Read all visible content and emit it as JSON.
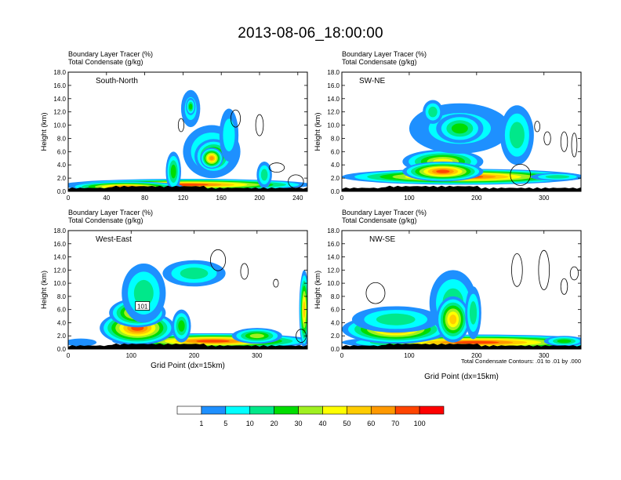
{
  "figure": {
    "title": "2013-08-06_18:00:00",
    "contour_note": "Total Condensate Contours: .01 to .01 by .000",
    "colorbar": {
      "colors": [
        "#ffffff",
        "#1e90ff",
        "#00ffff",
        "#00e88a",
        "#00dd00",
        "#a0f020",
        "#ffff00",
        "#ffcc00",
        "#ff9900",
        "#ff4400",
        "#ff0000"
      ],
      "labels": [
        "1",
        "5",
        "10",
        "20",
        "30",
        "40",
        "50",
        "60",
        "70",
        "100"
      ]
    }
  },
  "chart_data": [
    {
      "type": "heatmap",
      "name": "South-North",
      "title_line1": "Boundary Layer Tracer    (%)",
      "title_line2": "Total Condensate   (g/kg)",
      "xlabel": "",
      "ylabel": "Height (km)",
      "xlim": [
        0,
        250
      ],
      "ylim": [
        0,
        18
      ],
      "xticks": [
        0,
        40,
        80,
        120,
        160,
        200,
        240
      ],
      "yticks": [
        "0.0",
        "2.0",
        "4.0",
        "6.0",
        "8.0",
        "10.0",
        "12.0",
        "14.0",
        "16.0",
        "18.0"
      ],
      "blobs": [
        {
          "x": 125,
          "y": 1.0,
          "rx": 130,
          "ry": 0.9,
          "level": 9
        },
        {
          "x": 60,
          "y": 0.7,
          "rx": 60,
          "ry": 0.8,
          "level": 8
        },
        {
          "x": 150,
          "y": 6.0,
          "rx": 30,
          "ry": 4.0,
          "level": 3
        },
        {
          "x": 152,
          "y": 5.3,
          "rx": 20,
          "ry": 2.6,
          "level": 6
        },
        {
          "x": 150,
          "y": 5.0,
          "rx": 12,
          "ry": 1.6,
          "level": 8
        },
        {
          "x": 128,
          "y": 12.5,
          "rx": 10,
          "ry": 2.8,
          "level": 2
        },
        {
          "x": 128,
          "y": 12.8,
          "rx": 5,
          "ry": 1.3,
          "level": 4
        },
        {
          "x": 168,
          "y": 8.5,
          "rx": 10,
          "ry": 4.0,
          "level": 2
        },
        {
          "x": 205,
          "y": 2.5,
          "rx": 8,
          "ry": 2.0,
          "level": 3
        },
        {
          "x": 110,
          "y": 3.0,
          "rx": 8,
          "ry": 3.0,
          "level": 4
        }
      ],
      "contours": [
        {
          "x": 118,
          "y": 10.0,
          "rx": 3,
          "ry": 1.0
        },
        {
          "x": 175,
          "y": 11.0,
          "rx": 5,
          "ry": 1.3
        },
        {
          "x": 200,
          "y": 10.0,
          "rx": 4,
          "ry": 1.6
        },
        {
          "x": 238,
          "y": 1.5,
          "rx": 8,
          "ry": 1.0
        },
        {
          "x": 218,
          "y": 3.6,
          "rx": 8,
          "ry": 0.7
        }
      ]
    },
    {
      "type": "heatmap",
      "name": "SW-NE",
      "title_line1": "Boundary Layer Tracer    (%)",
      "title_line2": "Total Condensate   (g/kg)",
      "xlabel": "",
      "ylabel": "Height (km)",
      "xlim": [
        0,
        355
      ],
      "ylim": [
        0,
        18
      ],
      "xticks": [
        0,
        100,
        200,
        300
      ],
      "yticks": [
        "0.0",
        "2.0",
        "4.0",
        "6.0",
        "8.0",
        "10.0",
        "12.0",
        "14.0",
        "16.0",
        "18.0"
      ],
      "blobs": [
        {
          "x": 180,
          "y": 2.2,
          "rx": 180,
          "ry": 1.2,
          "level": 9
        },
        {
          "x": 150,
          "y": 4.5,
          "rx": 60,
          "ry": 1.8,
          "level": 6
        },
        {
          "x": 150,
          "y": 3.0,
          "rx": 60,
          "ry": 1.5,
          "level": 9
        },
        {
          "x": 175,
          "y": 9.5,
          "rx": 75,
          "ry": 3.8,
          "level": 2
        },
        {
          "x": 175,
          "y": 9.5,
          "rx": 35,
          "ry": 2.2,
          "level": 4
        },
        {
          "x": 260,
          "y": 8.5,
          "rx": 25,
          "ry": 4.5,
          "level": 3
        },
        {
          "x": 135,
          "y": 12.0,
          "rx": 15,
          "ry": 1.8,
          "level": 3
        },
        {
          "x": 320,
          "y": 2.2,
          "rx": 40,
          "ry": 0.6,
          "level": 3
        }
      ],
      "contours": [
        {
          "x": 290,
          "y": 9.8,
          "rx": 4,
          "ry": 0.8
        },
        {
          "x": 305,
          "y": 8.0,
          "rx": 5,
          "ry": 1.0
        },
        {
          "x": 330,
          "y": 7.5,
          "rx": 5,
          "ry": 1.5
        },
        {
          "x": 345,
          "y": 7.0,
          "rx": 4,
          "ry": 1.8
        },
        {
          "x": 265,
          "y": 2.5,
          "rx": 15,
          "ry": 1.6
        }
      ]
    },
    {
      "type": "heatmap",
      "name": "West-East",
      "title_line1": "Boundary Layer Tracer    (%)",
      "title_line2": "Total Condensate   (g/kg)",
      "xlabel": "Grid Point (dx=15km)",
      "ylabel": "Height (km)",
      "xlim": [
        0,
        380
      ],
      "ylim": [
        0,
        18
      ],
      "xticks": [
        0,
        100,
        200,
        300
      ],
      "yticks": [
        "0.0",
        "2.0",
        "4.0",
        "6.0",
        "8.0",
        "10.0",
        "12.0",
        "14.0",
        "16.0",
        "18.0"
      ],
      "box_label": "101",
      "blobs": [
        {
          "x": 230,
          "y": 1.2,
          "rx": 160,
          "ry": 1.2,
          "level": 9
        },
        {
          "x": 110,
          "y": 3.2,
          "rx": 60,
          "ry": 2.6,
          "level": 9
        },
        {
          "x": 110,
          "y": 5.5,
          "rx": 45,
          "ry": 2.2,
          "level": 7
        },
        {
          "x": 120,
          "y": 8.5,
          "rx": 35,
          "ry": 4.5,
          "level": 3
        },
        {
          "x": 200,
          "y": 11.5,
          "rx": 50,
          "ry": 2.0,
          "level": 3
        },
        {
          "x": 180,
          "y": 3.5,
          "rx": 15,
          "ry": 2.5,
          "level": 4
        },
        {
          "x": 300,
          "y": 2.0,
          "rx": 40,
          "ry": 1.2,
          "level": 5
        },
        {
          "x": 375,
          "y": 6.0,
          "rx": 8,
          "ry": 6.0,
          "level": 7
        },
        {
          "x": 20,
          "y": 1.0,
          "rx": 25,
          "ry": 0.6,
          "level": 1
        }
      ],
      "contours": [
        {
          "x": 238,
          "y": 13.5,
          "rx": 12,
          "ry": 1.6
        },
        {
          "x": 280,
          "y": 11.8,
          "rx": 6,
          "ry": 1.2
        },
        {
          "x": 330,
          "y": 10.0,
          "rx": 4,
          "ry": 0.6
        },
        {
          "x": 370,
          "y": 2.0,
          "rx": 8,
          "ry": 1.0
        }
      ]
    },
    {
      "type": "heatmap",
      "name": "NW-SE",
      "title_line1": "Boundary Layer Tracer    (%)",
      "title_line2": "Total Condensate   (g/kg)",
      "xlabel": "Grid Point (dx=15km)",
      "ylabel": "Height (km)",
      "xlim": [
        0,
        355
      ],
      "ylim": [
        0,
        18
      ],
      "xticks": [
        0,
        100,
        200,
        300
      ],
      "yticks": [
        "0.0",
        "2.0",
        "4.0",
        "6.0",
        "8.0",
        "10.0",
        "12.0",
        "14.0",
        "16.0",
        "18.0"
      ],
      "blobs": [
        {
          "x": 200,
          "y": 1.0,
          "rx": 200,
          "ry": 1.2,
          "level": 9
        },
        {
          "x": 80,
          "y": 3.0,
          "rx": 80,
          "ry": 2.2,
          "level": 8
        },
        {
          "x": 80,
          "y": 4.5,
          "rx": 65,
          "ry": 2.0,
          "level": 3
        },
        {
          "x": 165,
          "y": 7.0,
          "rx": 35,
          "ry": 5.0,
          "level": 3
        },
        {
          "x": 165,
          "y": 4.5,
          "rx": 25,
          "ry": 3.5,
          "level": 7
        },
        {
          "x": 195,
          "y": 5.5,
          "rx": 12,
          "ry": 4.0,
          "level": 3
        },
        {
          "x": 330,
          "y": 1.2,
          "rx": 30,
          "ry": 0.8,
          "level": 4
        }
      ],
      "contours": [
        {
          "x": 50,
          "y": 8.5,
          "rx": 14,
          "ry": 1.6
        },
        {
          "x": 260,
          "y": 12.0,
          "rx": 8,
          "ry": 2.5
        },
        {
          "x": 300,
          "y": 12.0,
          "rx": 8,
          "ry": 3.0
        },
        {
          "x": 345,
          "y": 11.5,
          "rx": 6,
          "ry": 1.0
        },
        {
          "x": 330,
          "y": 9.5,
          "rx": 5,
          "ry": 1.2
        }
      ]
    }
  ]
}
